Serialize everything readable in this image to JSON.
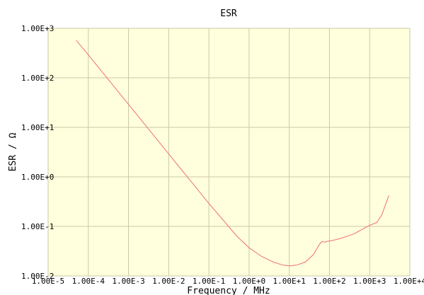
{
  "chart_data": {
    "type": "line",
    "title": "ESR",
    "xlabel": "Frequency / MHz",
    "ylabel": "ESR / Ω",
    "x_scale": "log",
    "y_scale": "log",
    "xlim": [
      1e-05,
      10000
    ],
    "ylim": [
      0.01,
      1000
    ],
    "grid": true,
    "x_tick_labels": [
      "1.00E-5",
      "1.00E-4",
      "1.00E-3",
      "1.00E-2",
      "1.00E-1",
      "1.00E+0",
      "1.00E+1",
      "1.00E+2",
      "1.00E+3",
      "1.00E+4"
    ],
    "y_tick_labels": [
      "1.00E+3",
      "1.00E+2",
      "1.00E+1",
      "1.00E+0",
      "1.00E-1",
      "1.00E-2"
    ],
    "colors": {
      "plot_background": "#ffffdd",
      "grid": "#c9c9a6",
      "line": "#f07070"
    },
    "series": [
      {
        "x": [
          5e-05,
          0.0001,
          0.001,
          0.01,
          0.1,
          0.5,
          1,
          2,
          4,
          7,
          10,
          15,
          25,
          40,
          55,
          65,
          75,
          90,
          120,
          200,
          400,
          700,
          1000,
          1500,
          2000,
          2500,
          3000
        ],
        "y": [
          570,
          290,
          29,
          2.9,
          0.29,
          0.063,
          0.037,
          0.025,
          0.019,
          0.0165,
          0.016,
          0.0165,
          0.019,
          0.027,
          0.042,
          0.05,
          0.048,
          0.05,
          0.052,
          0.058,
          0.07,
          0.09,
          0.105,
          0.12,
          0.17,
          0.28,
          0.42
        ]
      }
    ]
  }
}
